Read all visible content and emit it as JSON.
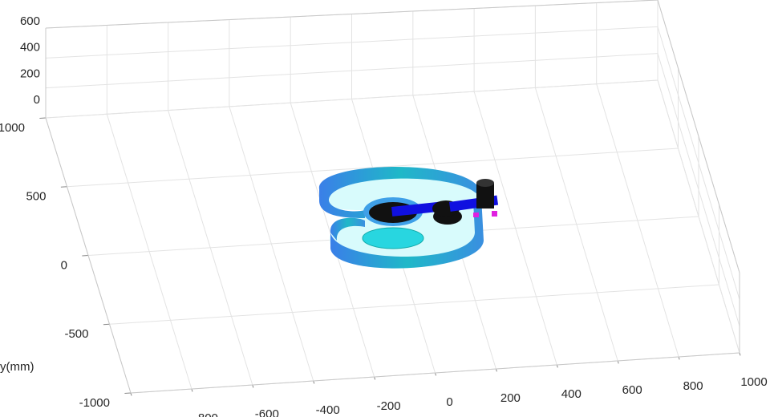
{
  "chart_data": {
    "type": "axes3d",
    "ylabel": "y(mm)",
    "xlim": [
      -1000,
      1000
    ],
    "ylim": [
      -1000,
      1000
    ],
    "zlim": [
      0,
      600
    ],
    "xticks": [
      -1000,
      -800,
      -600,
      -400,
      -200,
      0,
      200,
      400,
      600,
      800,
      1000
    ],
    "yticks": [
      -1000,
      -500,
      0,
      500,
      1000
    ],
    "zticks": [
      0,
      200,
      400,
      600
    ],
    "grid": true
  }
}
